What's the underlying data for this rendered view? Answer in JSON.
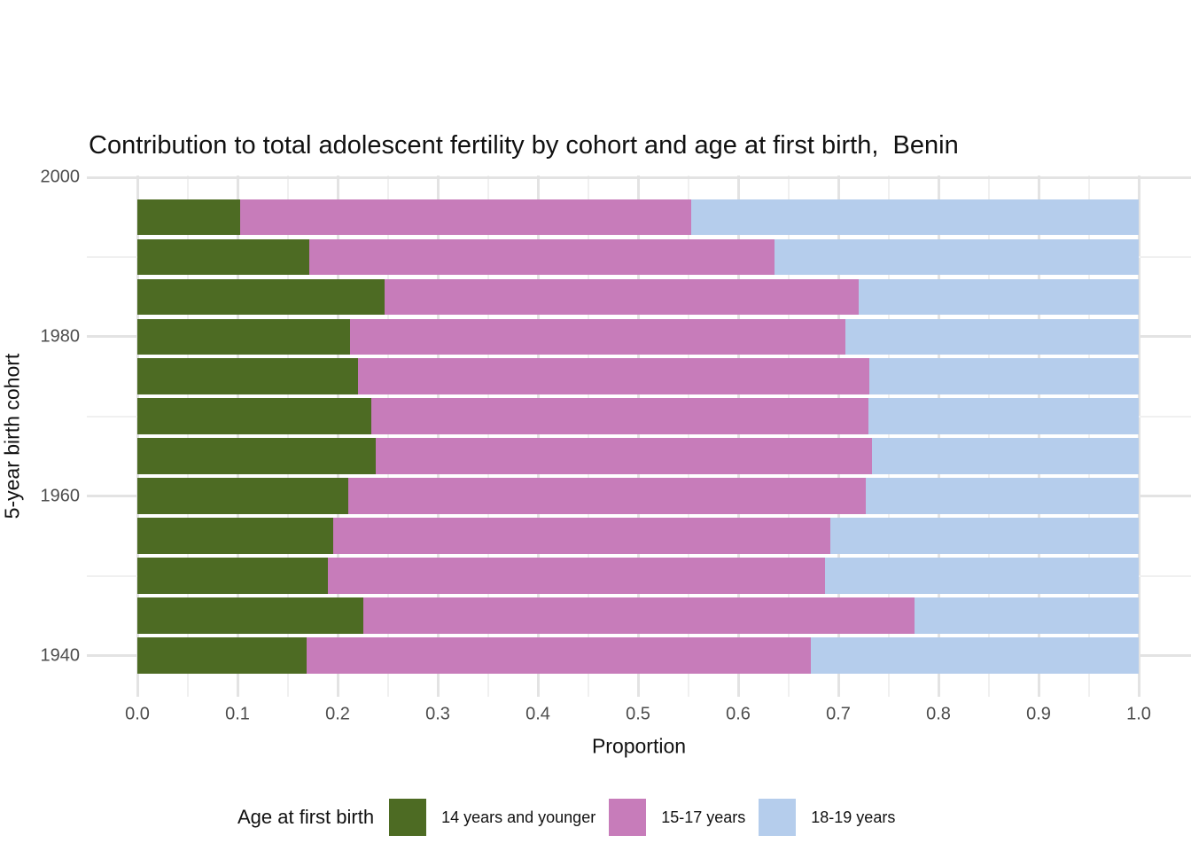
{
  "title": "Contribution to total adolescent fertility by cohort and age at first birth,  Benin",
  "axes": {
    "x": {
      "label": "Proportion",
      "ticks": [
        {
          "label": "0.0",
          "value": 0.0
        },
        {
          "label": "0.1",
          "value": 0.1
        },
        {
          "label": "0.2",
          "value": 0.2
        },
        {
          "label": "0.3",
          "value": 0.3
        },
        {
          "label": "0.4",
          "value": 0.4
        },
        {
          "label": "0.5",
          "value": 0.5
        },
        {
          "label": "0.6",
          "value": 0.6
        },
        {
          "label": "0.7",
          "value": 0.7
        },
        {
          "label": "0.8",
          "value": 0.8
        },
        {
          "label": "0.9",
          "value": 0.9
        },
        {
          "label": "1.0",
          "value": 1.0
        }
      ]
    },
    "y": {
      "label": "5-year birth cohort",
      "ticks": [
        {
          "label": "2000",
          "value": 2000
        },
        {
          "label": "1980",
          "value": 1980
        },
        {
          "label": "1960",
          "value": 1960
        },
        {
          "label": "1940",
          "value": 1940
        }
      ]
    }
  },
  "legend": {
    "title": "Age at first birth",
    "items": [
      {
        "label": "14 years and younger",
        "color": "#4d6b23"
      },
      {
        "label": "15-17 years",
        "color": "#c77cba"
      },
      {
        "label": "18-19 years",
        "color": "#b5cdec"
      }
    ]
  },
  "chart_data": {
    "type": "bar",
    "orientation": "horizontal",
    "stacked": true,
    "title": "Contribution to total adolescent fertility by cohort and age at first birth,  Benin",
    "xlabel": "Proportion",
    "ylabel": "5-year birth cohort",
    "xlim": [
      0.0,
      1.0
    ],
    "ylim": [
      1935,
      2000
    ],
    "grid": {
      "x_major_step": 0.1,
      "x_minor_step": 0.05,
      "y_major_step": 20,
      "y_minor_step": 10
    },
    "legend_position": "bottom",
    "categories": [
      1995,
      1990,
      1985,
      1980,
      1975,
      1970,
      1965,
      1960,
      1955,
      1950,
      1945,
      1940
    ],
    "series": [
      {
        "name": "14 years and younger",
        "color": "#4d6b23",
        "values": [
          0.103,
          0.172,
          0.247,
          0.212,
          0.22,
          0.234,
          0.238,
          0.211,
          0.196,
          0.19,
          0.226,
          0.169
        ]
      },
      {
        "name": "15-17 years",
        "color": "#c77cba",
        "values": [
          0.45,
          0.464,
          0.473,
          0.495,
          0.511,
          0.496,
          0.496,
          0.516,
          0.496,
          0.497,
          0.55,
          0.504
        ]
      },
      {
        "name": "18-19 years",
        "color": "#b5cdec",
        "values": [
          0.447,
          0.364,
          0.28,
          0.293,
          0.269,
          0.27,
          0.266,
          0.273,
          0.308,
          0.313,
          0.224,
          0.327
        ]
      }
    ]
  }
}
